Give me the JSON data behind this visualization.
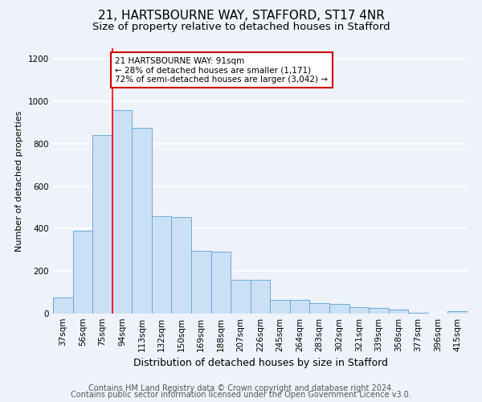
{
  "title": "21, HARTSBOURNE WAY, STAFFORD, ST17 4NR",
  "subtitle": "Size of property relative to detached houses in Stafford",
  "xlabel": "Distribution of detached houses by size in Stafford",
  "ylabel": "Number of detached properties",
  "categories": [
    "37sqm",
    "56sqm",
    "75sqm",
    "94sqm",
    "113sqm",
    "132sqm",
    "150sqm",
    "169sqm",
    "188sqm",
    "207sqm",
    "226sqm",
    "245sqm",
    "264sqm",
    "283sqm",
    "302sqm",
    "321sqm",
    "339sqm",
    "358sqm",
    "377sqm",
    "396sqm",
    "415sqm"
  ],
  "values": [
    75,
    390,
    840,
    960,
    875,
    460,
    455,
    295,
    290,
    160,
    160,
    65,
    65,
    50,
    45,
    30,
    25,
    20,
    5,
    0,
    10
  ],
  "bar_color": "#cce0f5",
  "bar_edge_color": "#6aaad4",
  "red_line_x": 2.5,
  "ylim": [
    0,
    1250
  ],
  "yticks": [
    0,
    200,
    400,
    600,
    800,
    1000,
    1200
  ],
  "annotation_text": "21 HARTSBOURNE WAY: 91sqm\n← 28% of detached houses are smaller (1,171)\n72% of semi-detached houses are larger (3,042) →",
  "annotation_box_color": "#ffffff",
  "annotation_box_edge": "#cc0000",
  "footer1": "Contains HM Land Registry data © Crown copyright and database right 2024.",
  "footer2": "Contains public sector information licensed under the Open Government Licence v3.0.",
  "bg_color": "#eef2fa",
  "plot_bg_color": "#eef2fa",
  "grid_color": "#ffffff",
  "title_fontsize": 11,
  "subtitle_fontsize": 9.5,
  "xlabel_fontsize": 9,
  "ylabel_fontsize": 8,
  "tick_fontsize": 7.5,
  "footer_fontsize": 7,
  "annot_fontsize": 7.5
}
